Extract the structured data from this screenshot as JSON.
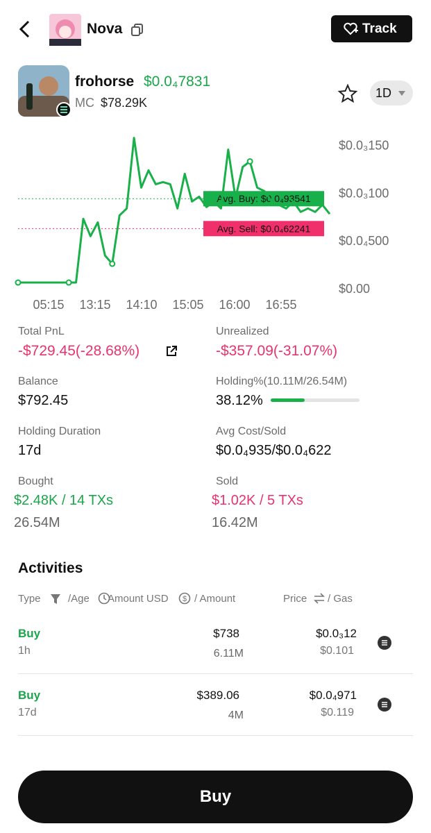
{
  "header": {
    "title": "Nova",
    "track_button": "Track"
  },
  "token": {
    "name": "frohorse",
    "price": "$0.0₄7831",
    "mc_label": "MC",
    "mc": "$78.29K",
    "timeframe": "1D"
  },
  "chart_data": {
    "type": "line",
    "color": "#19b04a",
    "values": [
      5.8e-06,
      5.8e-06,
      5.8e-06,
      5.8e-06,
      5.8e-06,
      5.8e-06,
      5.8e-06,
      5.8e-06,
      5.8e-06,
      7.25e-05,
      5.43e-05,
      6.88e-05,
      3.41e-05,
      2.54e-05,
      7.61e-05,
      8.33e-05,
      0.0001572,
      0.0001051,
      0.0001232,
      0.0001087,
      0.0001109,
      0.0001087,
      8.33e-05,
      0.0001196,
      9.06e-05,
      9.57e-05,
      8.48e-05,
      9.06e-05,
      8.33e-05,
      0.0001449,
      9.42e-05,
      0.0001268,
      0.0001326,
      0.0001051,
      0.0001014,
      9.06e-05,
      8.7e-05,
      8.33e-05,
      9.06e-05,
      7.97e-05,
      8.33e-05,
      7.97e-05,
      8.7e-05,
      7.76e-05
    ],
    "x_labels": [
      "05:15",
      "13:15",
      "14:10",
      "15:05",
      "16:00",
      "16:55"
    ],
    "ylim": [
      0,
      0.00017
    ],
    "yticks": [
      {
        "value": 0,
        "label": "$0.00"
      },
      {
        "value": 5e-05,
        "label": "$0.0₄500"
      },
      {
        "value": 0.0001,
        "label": "$0.0₃100"
      },
      {
        "value": 0.00015,
        "label": "$0.0₃150"
      }
    ],
    "reference_lines": [
      {
        "value": 9.3541e-05,
        "label": "Avg. Buy: $0.0₄93541",
        "color": "#18b04a"
      },
      {
        "value": 6.2241e-05,
        "label": "Avg. Sell: $0.0₄62241",
        "color": "#f0306a"
      }
    ]
  },
  "stats": {
    "total_pnl": {
      "label": "Total PnL",
      "value": "-$729.45(-28.68%)"
    },
    "unrealized": {
      "label": "Unrealized",
      "value": "-$357.09(-31.07%)"
    },
    "balance": {
      "label": "Balance",
      "value": "$792.45"
    },
    "holding": {
      "label": "Holding%(10.11M/26.54M)",
      "value": 38.12,
      "value_label": "38.12%"
    },
    "duration": {
      "label": "Holding Duration",
      "value": "17d"
    },
    "avg_cost": {
      "label": "Avg Cost/Sold",
      "value": "$0.0₄935/$0.0₄622"
    },
    "bought": {
      "label": "Bought",
      "value": "$2.48K / 14 TXs",
      "amount": "26.54M"
    },
    "sold": {
      "label": "Sold",
      "value": "$1.02K / 5 TXs",
      "amount": "16.42M"
    }
  },
  "activities": {
    "title": "Activities",
    "columns": [
      "Type",
      "/Age",
      "Amount USD",
      "/ Amount",
      "Price",
      "/ Gas"
    ],
    "rows": [
      [
        "Buy",
        "1h",
        "$738",
        "6.11M",
        "$0.0₃12",
        "$0.101"
      ],
      [
        "Buy",
        "17d",
        "$389.06",
        "4M",
        "$0.0₄971",
        "$0.119"
      ]
    ]
  },
  "buy_button": "Buy"
}
